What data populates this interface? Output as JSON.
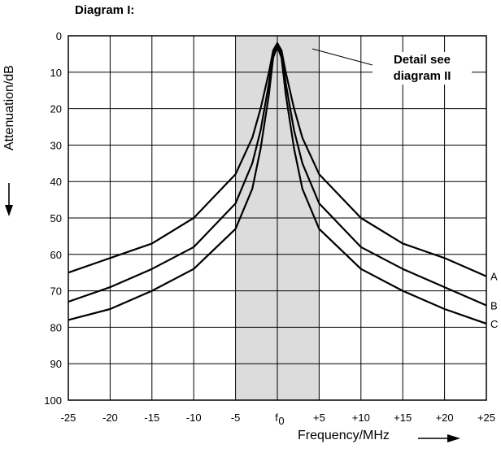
{
  "chart_data": {
    "type": "line",
    "title": "Diagram I:",
    "xlabel": "Frequency/MHz",
    "ylabel": "Attenuation/dB",
    "x_ticks": [
      "-25",
      "-20",
      "-15",
      "-10",
      "-5",
      "f0",
      "+5",
      "+10",
      "+15",
      "+20",
      "+25"
    ],
    "y_ticks": [
      "0",
      "10",
      "20",
      "30",
      "40",
      "50",
      "60",
      "70",
      "80",
      "90",
      "100"
    ],
    "xlim": [
      -25,
      25
    ],
    "ylim": [
      0,
      100
    ],
    "y_inverted": true,
    "grid": true,
    "shaded_region": [
      -5,
      5
    ],
    "annotation": "Detail see diagram II",
    "series": [
      {
        "name": "A",
        "x": [
          -25,
          -20,
          -15,
          -10,
          -5,
          -3,
          -2,
          -1,
          -0.5,
          0,
          0.5,
          1,
          2,
          3,
          5,
          10,
          15,
          20,
          25
        ],
        "y": [
          65,
          61,
          57,
          50,
          38,
          28,
          20,
          10,
          4,
          2,
          4,
          10,
          20,
          28,
          38,
          50,
          57,
          61,
          66
        ]
      },
      {
        "name": "B",
        "x": [
          -25,
          -20,
          -15,
          -10,
          -5,
          -3,
          -2,
          -1,
          -0.5,
          0,
          0.5,
          1,
          2,
          3,
          5,
          10,
          15,
          20,
          25
        ],
        "y": [
          73,
          69,
          64,
          58,
          46,
          35,
          26,
          13,
          5,
          2.5,
          5,
          13,
          26,
          35,
          46,
          58,
          64,
          69,
          74
        ]
      },
      {
        "name": "C",
        "x": [
          -25,
          -20,
          -15,
          -10,
          -5,
          -3,
          -2,
          -1,
          -0.5,
          0,
          0.5,
          1,
          2,
          3,
          5,
          10,
          15,
          20,
          25
        ],
        "y": [
          78,
          75,
          70,
          64,
          53,
          42,
          31,
          16,
          6,
          3,
          6,
          16,
          31,
          42,
          53,
          64,
          70,
          75,
          79
        ]
      }
    ]
  }
}
